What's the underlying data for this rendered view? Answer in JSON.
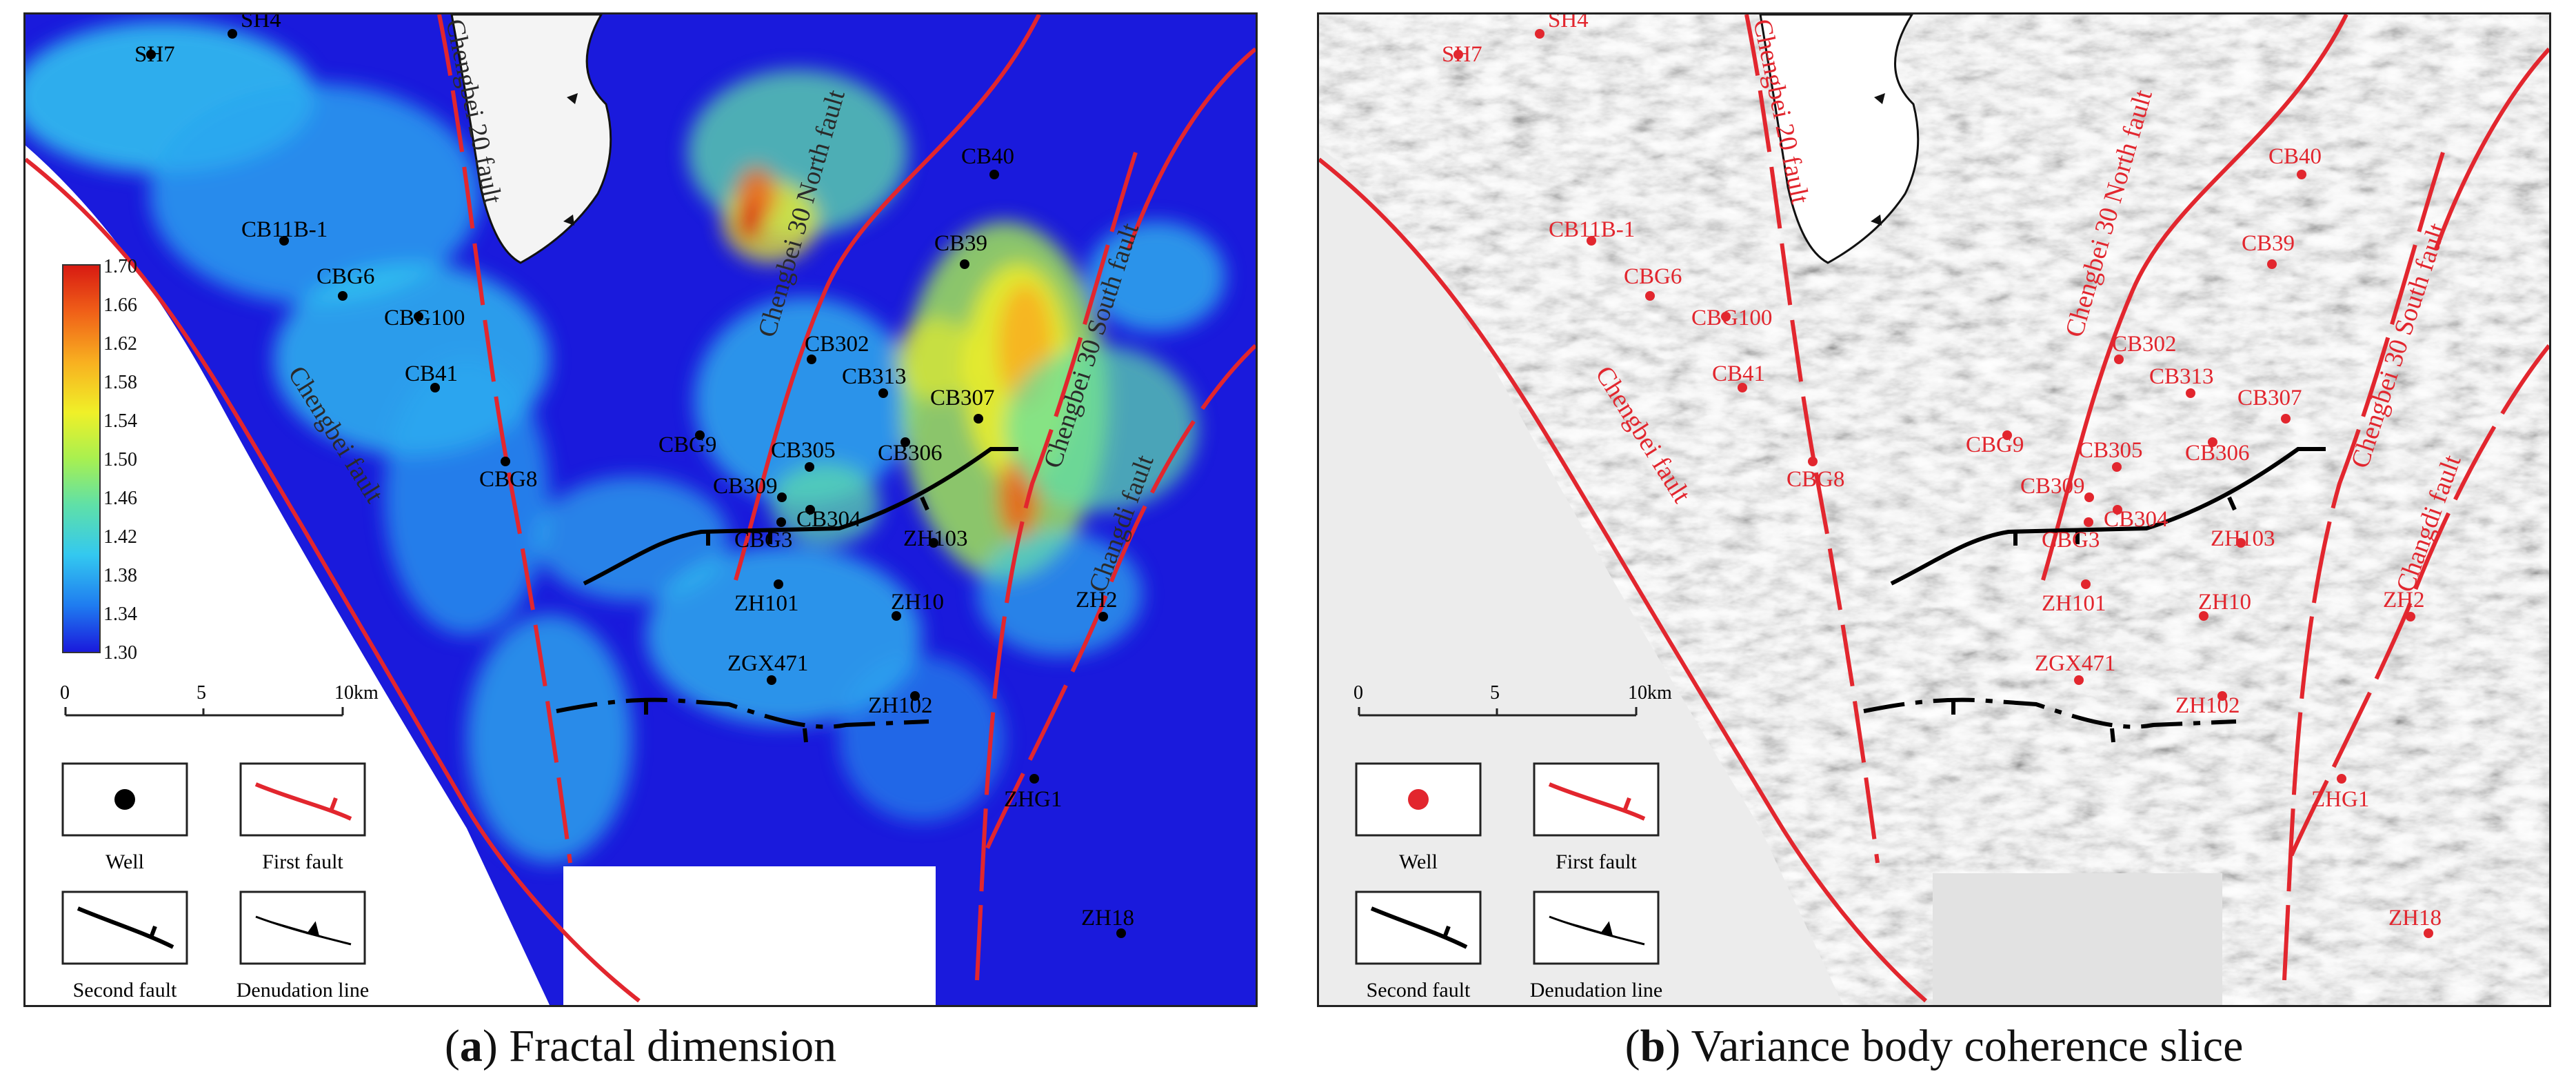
{
  "panels": [
    {
      "letter": "a",
      "title": "Fractal dimension",
      "colorbar": {
        "min": 1.3,
        "max": 1.7,
        "ticks": [
          "1.70",
          "1.66",
          "1.62",
          "1.58",
          "1.54",
          "1.50",
          "1.46",
          "1.42",
          "1.38",
          "1.34",
          "1.30"
        ],
        "colors": [
          "#1a1adc",
          "#1f7cf0",
          "#33c8f0",
          "#5fe0a8",
          "#a8f050",
          "#f0f028",
          "#f8b020",
          "#f06018",
          "#d81a12"
        ]
      },
      "well_color": "#000000",
      "well_label_color": "#000000"
    },
    {
      "letter": "b",
      "title": "Variance body coherence slice",
      "well_color": "#e2262e",
      "well_label_color": "#e2262e"
    }
  ],
  "wells": [
    "SH4",
    "SH7",
    "CB11B-1",
    "CBG6",
    "CBG100",
    "CB41",
    "CBG8",
    "CB40",
    "CB39",
    "CB302",
    "CB313",
    "CB307",
    "CBG9",
    "CB305",
    "CB306",
    "CB309",
    "CB304",
    "CBG3",
    "ZH103",
    "ZH101",
    "ZH10",
    "ZH2",
    "ZGX471",
    "ZH102",
    "ZHG1",
    "ZH18"
  ],
  "faults": {
    "chengbei_20_a": "Chengbei 20 fault",
    "chengbei_20_b": "Chengbei 20 fault",
    "chengbei_30_north": "Chengbei 30 North fault",
    "chengbei_30_south": "Chengbei 30 South fault",
    "chengbei": "Chengbei fault",
    "changdi": "Changdi fault"
  },
  "scale_bar": {
    "ticks": [
      "0",
      "5",
      "10km"
    ]
  },
  "legend": {
    "well": "Well",
    "first_fault": "First  fault",
    "second_fault": "Second  fault",
    "denudation_line": "Denudation line"
  },
  "colors": {
    "fault": "#e2262e",
    "second_fault": "#000000",
    "coast_fill": "#f4f4f4",
    "blue_background": "#1a1adc"
  }
}
